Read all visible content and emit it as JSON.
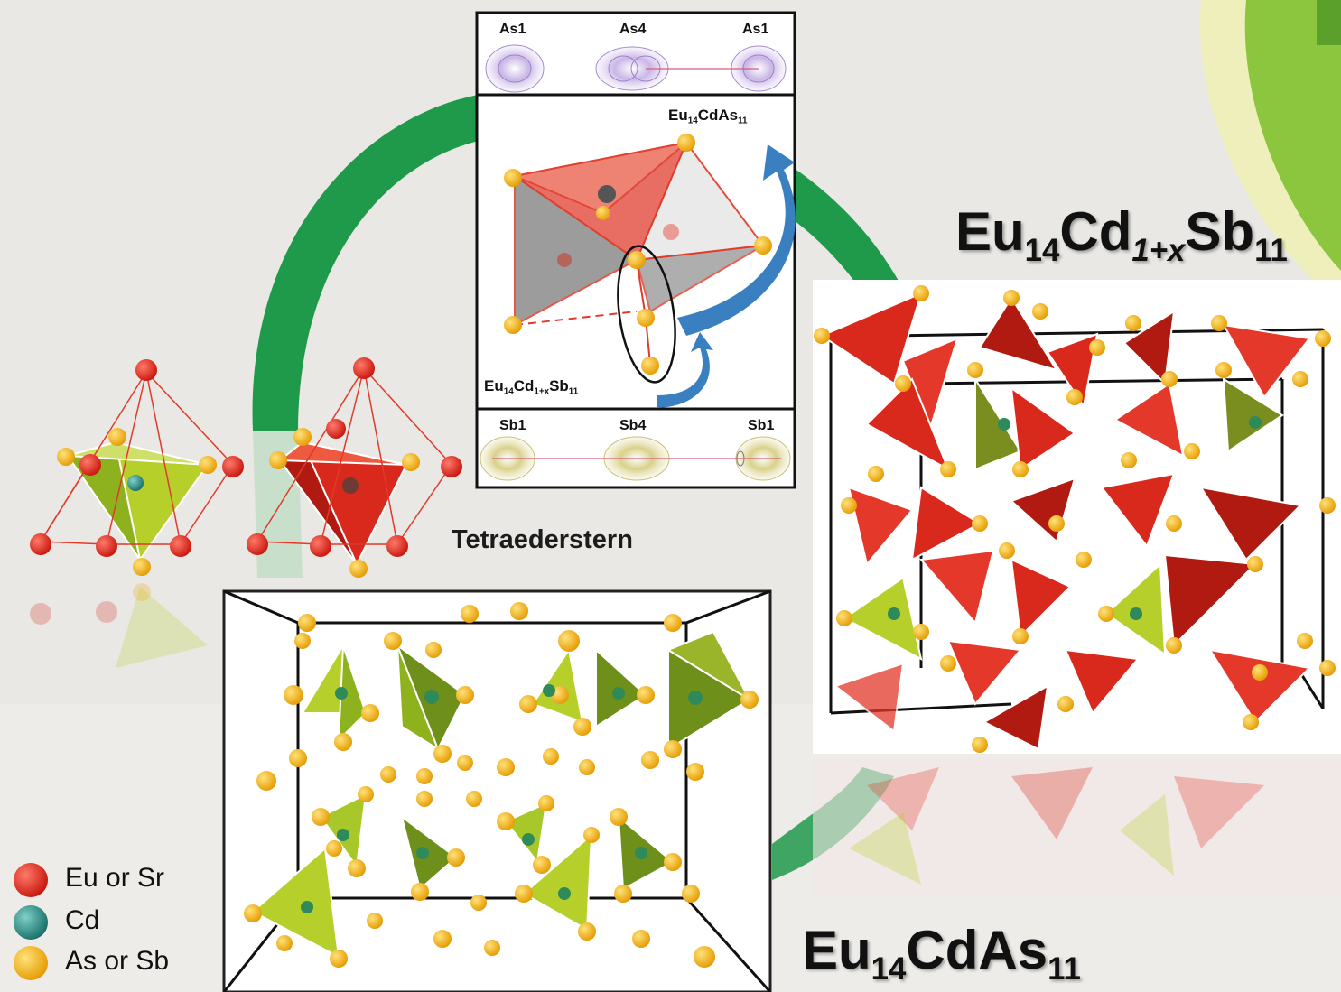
{
  "labels": {
    "sb_main": {
      "base": "Eu",
      "s1": "14",
      "mid": "Cd",
      "s2": "1+x",
      "end": "Sb",
      "s3": "11"
    },
    "as_main": {
      "base": "Eu",
      "s1": "14",
      "mid": "CdAs",
      "s2": "11"
    },
    "tetra": "Tetraederstern",
    "inset_as": {
      "base": "Eu",
      "s1": "14",
      "mid": "CdAs",
      "s2": "11"
    },
    "inset_sb": {
      "base": "Eu",
      "s1": "14",
      "mid": "Cd",
      "s2": "1+x",
      "end": "Sb",
      "s3": "11"
    }
  },
  "top_panel": {
    "left": "As1",
    "center": "As4",
    "right": "As1"
  },
  "bottom_panel": {
    "left": "Sb1",
    "center": "Sb4",
    "right": "Sb1"
  },
  "legend": [
    {
      "label": "Eu or Sr",
      "color": "#d8261c"
    },
    {
      "label": "Cd",
      "color": "#1f8f87"
    },
    {
      "label": "As or Sb",
      "color": "#f0a800"
    }
  ],
  "colors": {
    "green_arc": "#1e9a4a",
    "lime_corner": "#8cc63f",
    "red_poly": "#d9281c",
    "lime_poly": "#a8c82a"
  }
}
